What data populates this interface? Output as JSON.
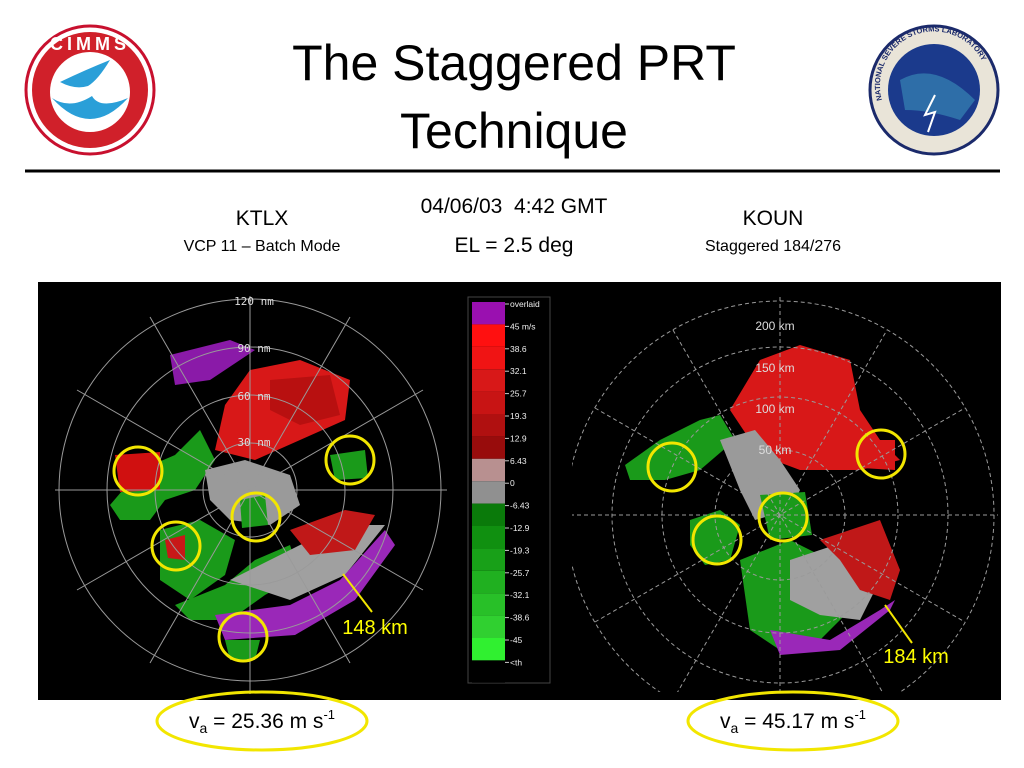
{
  "header": {
    "title_lines": [
      "The Staggered PRT",
      "Technique"
    ],
    "left_logo": "CIMMS",
    "right_logo": "NATIONAL SEVERE STORMS LABORATORY"
  },
  "left_radar": {
    "site": "KTLX",
    "mode": "VCP 11 – Batch Mode",
    "ranges": [
      "120 nm",
      "90 nm",
      "60 nm",
      "30 nm"
    ],
    "annotation": "148 km"
  },
  "center": {
    "datetime": "04/06/03  4:42 GMT",
    "elevation": "EL = 2.5 deg"
  },
  "right_radar": {
    "site": "KOUN",
    "mode": "Staggered 184/276",
    "ranges": [
      "200 km",
      "150 km",
      "100 km",
      "50 km"
    ],
    "annotation": "184 km"
  },
  "colorbar": {
    "labels": [
      "overlaid",
      "45 m/s",
      "38.6",
      "32.1",
      "25.7",
      "19.3",
      "12.9",
      "6.43",
      "0",
      "-6.43",
      "-12.9",
      "-19.3",
      "-25.7",
      "-32.1",
      "-38.6",
      "-45",
      "<th"
    ]
  },
  "footer": {
    "left": {
      "symbol": "v",
      "subscript": "a",
      "text": " = 25.36 m s",
      "superscript": "-1"
    },
    "right": {
      "symbol": "v",
      "subscript": "a",
      "text": " = 45.17 m s",
      "superscript": "-1"
    }
  }
}
